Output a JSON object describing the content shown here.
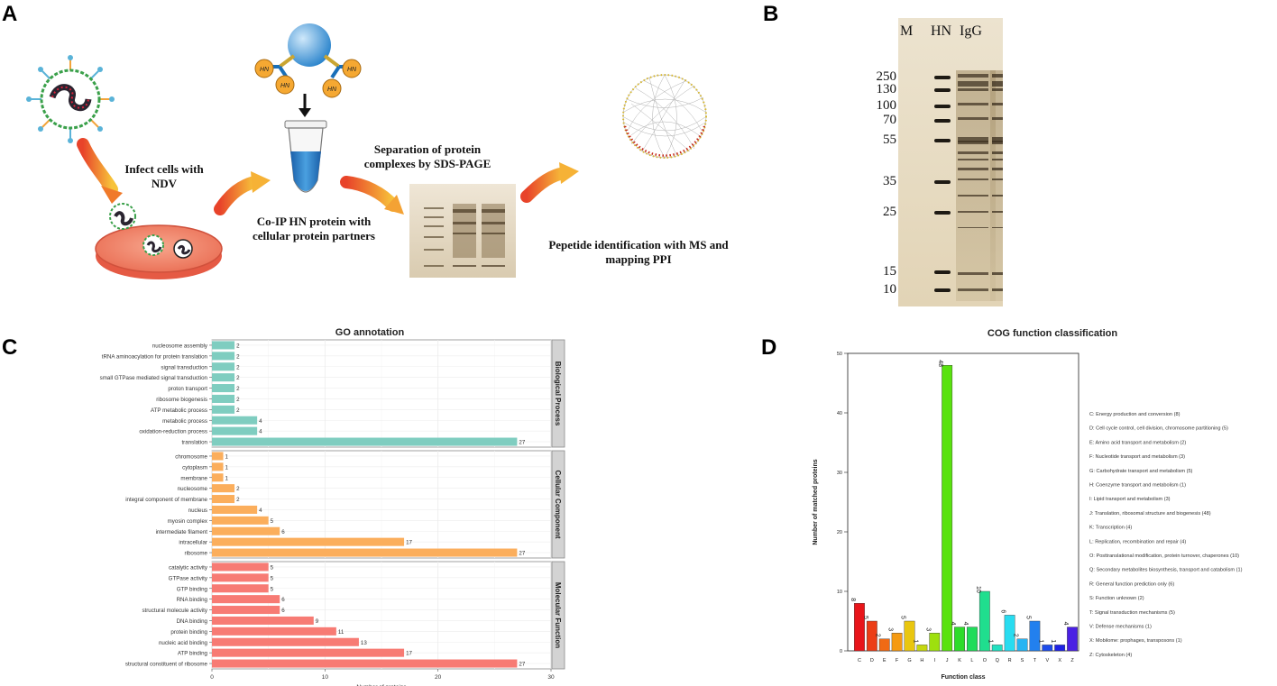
{
  "panels": {
    "A": "A",
    "B": "B",
    "C": "C",
    "D": "D"
  },
  "panelA": {
    "step1": "Infect cells with NDV",
    "step2": "Co-IP HN protein with cellular protein partners",
    "step3": "Separation of protein complexes by SDS-PAGE",
    "step4": "Pepetide identification with MS and mapping PPI",
    "hn_label": "HN"
  },
  "panelB": {
    "lanes": [
      "M",
      "HN",
      "IgG"
    ],
    "markers": [
      "250",
      "130",
      "100",
      "70",
      "55",
      "35",
      "25",
      "15",
      "10"
    ]
  },
  "chart_data": [
    {
      "type": "bar",
      "orientation": "horizontal",
      "title": "GO annotation",
      "xlabel": "Number of proteins",
      "xlim": [
        0,
        30
      ],
      "xticks": [
        0,
        10,
        20,
        30
      ],
      "facets": [
        {
          "name": "Biological Process",
          "color": "#7fcdc0",
          "categories": [
            "nucleosome assembly",
            "tRNA aminoacylation for protein translation",
            "signal transduction",
            "small GTPase mediated signal transduction",
            "proton transport",
            "ribosome biogenesis",
            "ATP metabolic process",
            "metabolic process",
            "oxidation-reduction process",
            "translation"
          ],
          "values": [
            2,
            2,
            2,
            2,
            2,
            2,
            2,
            4,
            4,
            27
          ]
        },
        {
          "name": "Cellular Component",
          "color": "#fbae5c",
          "categories": [
            "chromosome",
            "cytoplasm",
            "membrane",
            "nucleosome",
            "integral component of membrane",
            "nucleus",
            "myosin complex",
            "intermediate filament",
            "intracellular",
            "ribosome"
          ],
          "values": [
            1,
            1,
            1,
            2,
            2,
            4,
            5,
            6,
            17,
            27
          ]
        },
        {
          "name": "Molecular Function",
          "color": "#f77b74",
          "categories": [
            "catalytic activity",
            "GTPase activity",
            "GTP binding",
            "RNA binding",
            "structural molecule activity",
            "DNA binding",
            "protein binding",
            "nucleic acid binding",
            "ATP binding",
            "structural constituent of ribosome"
          ],
          "values": [
            5,
            5,
            5,
            6,
            6,
            9,
            11,
            13,
            17,
            27
          ]
        }
      ]
    },
    {
      "type": "bar",
      "title": "COG function classification",
      "xlabel": "Function class",
      "ylabel": "Number of matched proteins",
      "ylim": [
        0,
        50
      ],
      "yticks": [
        0,
        10,
        20,
        30,
        40,
        50
      ],
      "categories": [
        "C",
        "D",
        "E",
        "F",
        "G",
        "H",
        "I",
        "J",
        "K",
        "L",
        "O",
        "Q",
        "R",
        "S",
        "T",
        "V",
        "X",
        "Z"
      ],
      "values": [
        8,
        5,
        2,
        3,
        5,
        1,
        3,
        48,
        4,
        4,
        10,
        1,
        6,
        2,
        5,
        1,
        1,
        4
      ],
      "colors": [
        "#e8151a",
        "#ec3d16",
        "#f06a14",
        "#f59a12",
        "#e9c60f",
        "#c5d80e",
        "#9ee00e",
        "#59e20e",
        "#2ddc2a",
        "#20dc5a",
        "#20de8e",
        "#22e0c0",
        "#28dcf0",
        "#26b4f2",
        "#2280ee",
        "#1e4cea",
        "#1e22e6",
        "#4a20e4"
      ],
      "legend": [
        "C: Energy production and conversion  (8)",
        "D: Cell cycle control, cell division, chromosome partitioning  (5)",
        "E: Amino acid transport and metabolism  (2)",
        "F: Nucleotide transport and metabolism  (3)",
        "G: Carbohydrate transport and metabolism  (5)",
        "H: Coenzyme transport and metabolism  (1)",
        "I: Lipid transport and metabolism  (3)",
        "J: Translation, ribosomal structure and biogenesis  (48)",
        "K: Transcription  (4)",
        "L: Replication, recombination and repair  (4)",
        "O: Posttranslational modification, protein turnover, chaperones  (10)",
        "Q: Secondary metabolites biosynthesis, transport and catabolism  (1)",
        "R: General function prediction only  (6)",
        "S: Function unknown  (2)",
        "T: Signal transduction mechanisms  (5)",
        "V: Defense mechanisms  (1)",
        "X: Mobilome: prophages, transposons  (1)",
        "Z: Cytoskeleton  (4)"
      ]
    }
  ]
}
